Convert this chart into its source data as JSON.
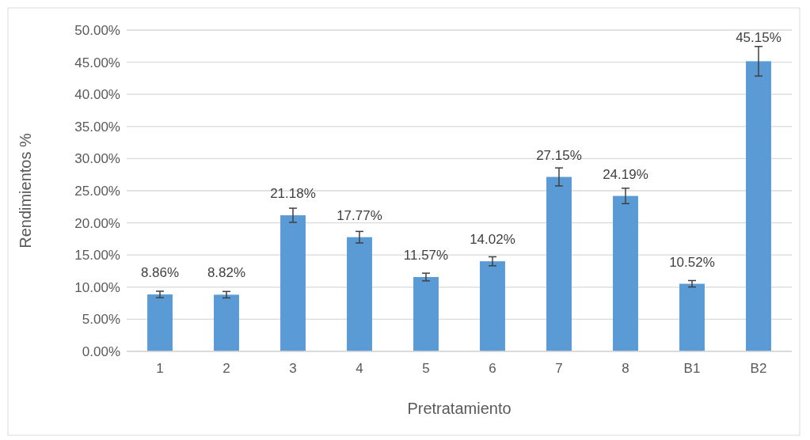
{
  "chart_data": {
    "type": "bar",
    "xlabel": "Pretratamiento",
    "ylabel": "Rendimientos %",
    "categories": [
      "1",
      "2",
      "3",
      "4",
      "5",
      "6",
      "7",
      "8",
      "B1",
      "B2"
    ],
    "values": [
      8.86,
      8.82,
      21.18,
      17.77,
      11.57,
      14.02,
      27.15,
      24.19,
      10.52,
      45.15
    ],
    "errors": [
      0.5,
      0.5,
      1.1,
      0.9,
      0.6,
      0.7,
      1.4,
      1.2,
      0.5,
      2.3
    ],
    "value_labels": [
      "8.86%",
      "8.82%",
      "21.18%",
      "17.77%",
      "11.57%",
      "14.02%",
      "27.15%",
      "24.19%",
      "10.52%",
      "45.15%"
    ],
    "color": "#5b9bd5",
    "ylim": [
      0,
      50
    ],
    "yticks": [
      {
        "value": 0,
        "label": "0.00%"
      },
      {
        "value": 5,
        "label": "5.00%"
      },
      {
        "value": 10,
        "label": "10.00%"
      },
      {
        "value": 15,
        "label": "15.00%"
      },
      {
        "value": 20,
        "label": "20.00%"
      },
      {
        "value": 25,
        "label": "25.00%"
      },
      {
        "value": 30,
        "label": "30.00%"
      },
      {
        "value": 35,
        "label": "35.00%"
      },
      {
        "value": 40,
        "label": "40.00%"
      },
      {
        "value": 45,
        "label": "45.00%"
      },
      {
        "value": 50,
        "label": "50.00%"
      }
    ],
    "grid": "y"
  }
}
